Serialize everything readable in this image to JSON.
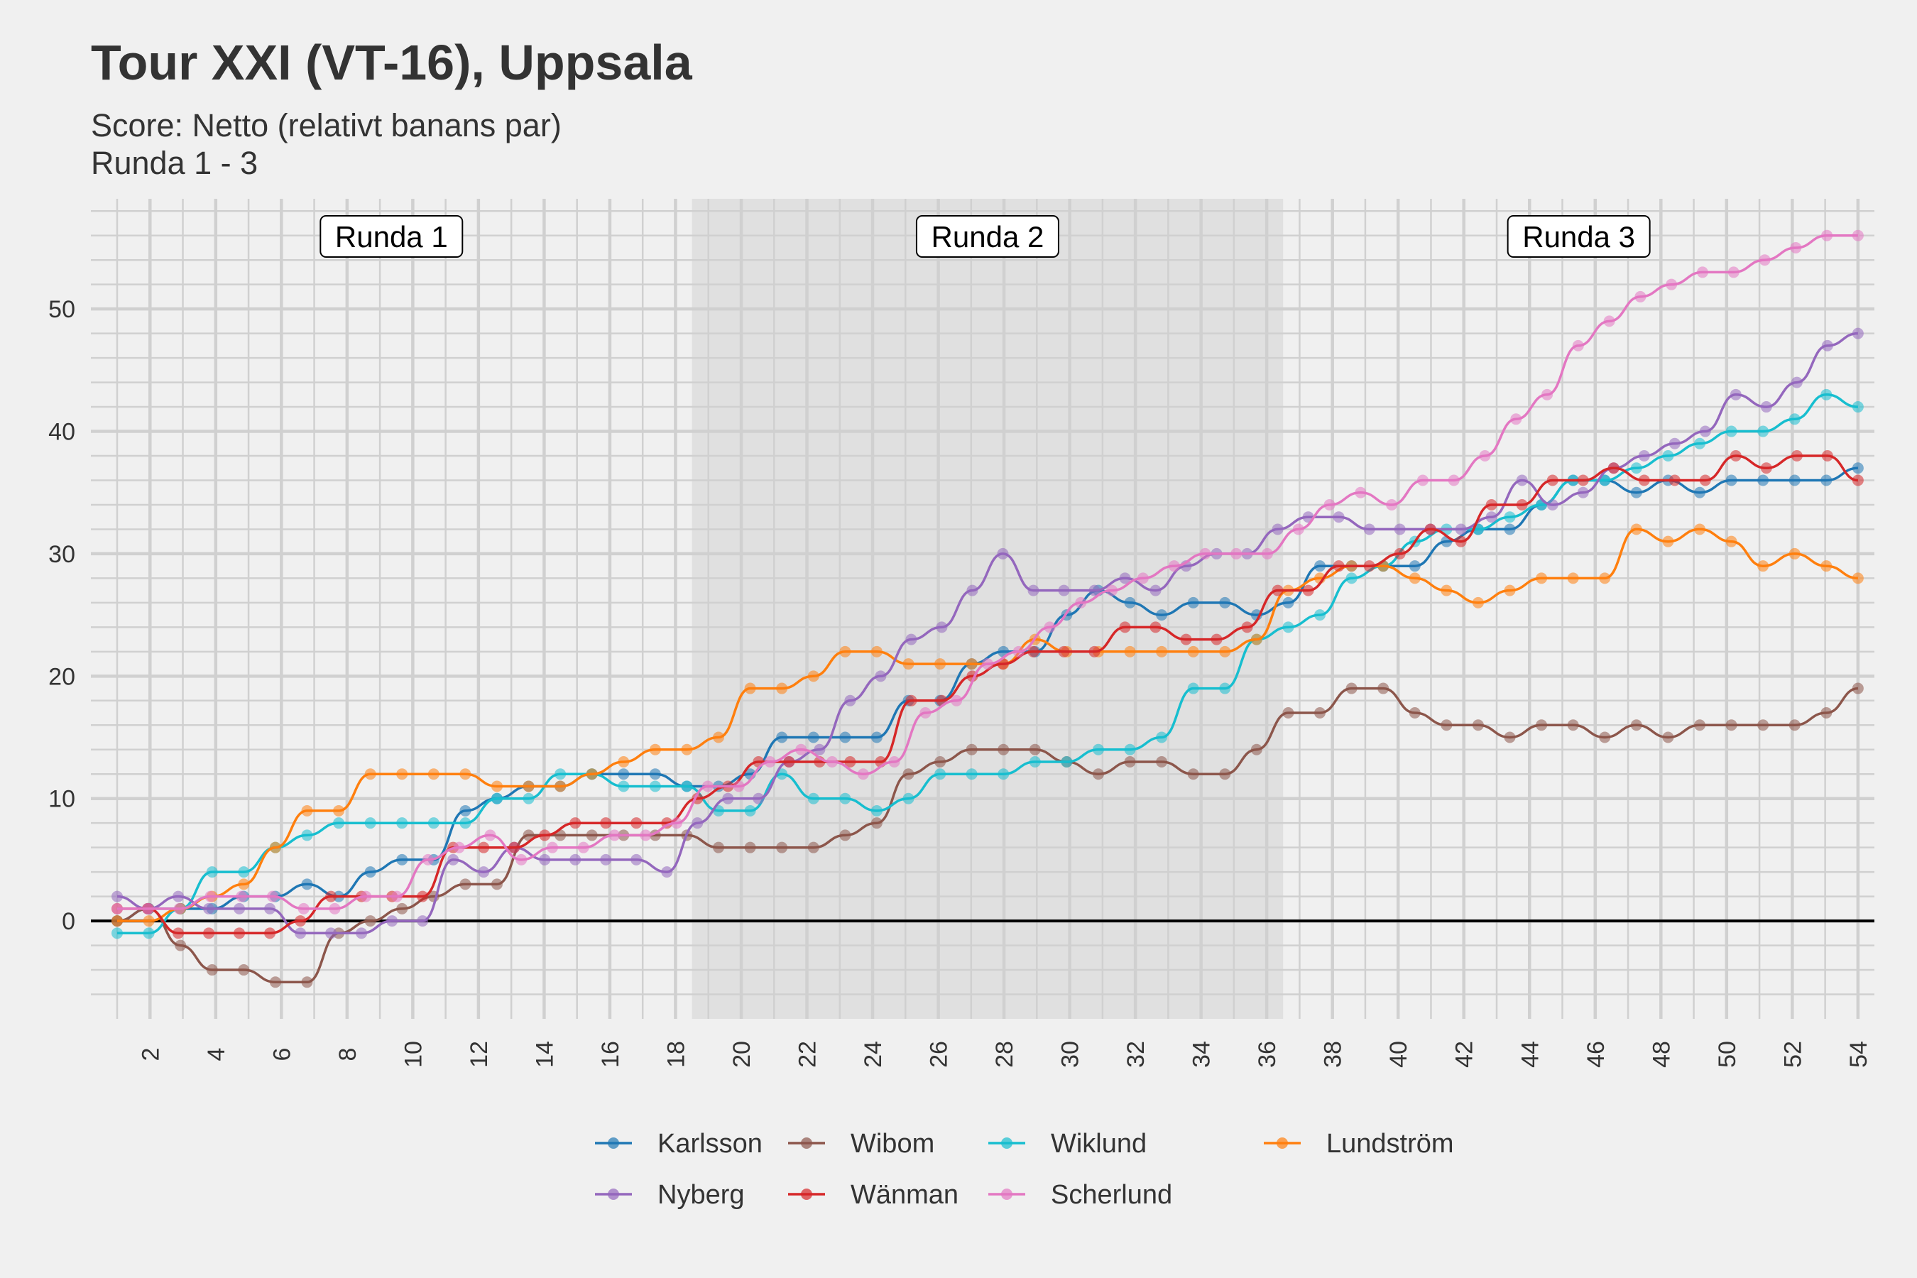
{
  "header": {
    "title": "Tour XXI (VT-16), Uppsala",
    "subtitle_line1": "Score: Netto (relativt banans par)",
    "subtitle_line2": "Runda 1 - 3"
  },
  "chart_data": {
    "type": "line",
    "title": "Tour XXI (VT-16), Uppsala",
    "subtitle": [
      "Score: Netto (relativt banans par)",
      "Runda 1 - 3"
    ],
    "xlabel": "",
    "ylabel": "",
    "xlim": [
      0.2,
      54.5
    ],
    "ylim": [
      -8,
      59
    ],
    "x_ticks": [
      2,
      4,
      6,
      8,
      10,
      12,
      14,
      16,
      18,
      20,
      22,
      24,
      26,
      28,
      30,
      32,
      34,
      36,
      38,
      40,
      42,
      44,
      46,
      48,
      50,
      52,
      54
    ],
    "y_ticks": [
      0,
      10,
      20,
      30,
      40,
      50
    ],
    "grid": true,
    "reference_line_y": 0,
    "legend_position": "bottom",
    "rounds": [
      {
        "label": "Runda 1",
        "x_start": 0.2,
        "x_end": 18.5,
        "shaded": false
      },
      {
        "label": "Runda 2",
        "x_start": 18.5,
        "x_end": 36.5,
        "shaded": true
      },
      {
        "label": "Runda 3",
        "x_start": 36.5,
        "x_end": 54.5,
        "shaded": false
      }
    ],
    "series": [
      {
        "name": "Karlsson",
        "color": "#1f77b4",
        "values": [
          0,
          1,
          1,
          1,
          2,
          2,
          3,
          2,
          4,
          5,
          5,
          9,
          10,
          11,
          11,
          12,
          12,
          12,
          11,
          11,
          12,
          15,
          15,
          15,
          15,
          18,
          18,
          21,
          22,
          22,
          25,
          27,
          26,
          25,
          26,
          26,
          25,
          26,
          29,
          29,
          29,
          29,
          31,
          32,
          32,
          34,
          36,
          36,
          35,
          36,
          35,
          36,
          36,
          36,
          36,
          37
        ]
      },
      {
        "name": "Wibom",
        "color": "#8c564b",
        "values": [
          0,
          1,
          -2,
          -4,
          -4,
          -5,
          -5,
          -1,
          0,
          1,
          2,
          3,
          3,
          7,
          7,
          7,
          7,
          7,
          7,
          6,
          6,
          6,
          6,
          7,
          8,
          12,
          13,
          14,
          14,
          14,
          13,
          12,
          13,
          13,
          12,
          12,
          14,
          17,
          17,
          19,
          19,
          17,
          16,
          16,
          15,
          16,
          16,
          15,
          16,
          15,
          16,
          16,
          16,
          16,
          17,
          19
        ]
      },
      {
        "name": "Wiklund",
        "color": "#17becf",
        "values": [
          -1,
          -1,
          1,
          4,
          4,
          6,
          7,
          8,
          8,
          8,
          8,
          8,
          10,
          10,
          12,
          12,
          11,
          11,
          11,
          9,
          9,
          12,
          10,
          10,
          9,
          10,
          12,
          12,
          12,
          13,
          13,
          14,
          14,
          15,
          19,
          19,
          23,
          24,
          25,
          28,
          29,
          31,
          32,
          32,
          33,
          34,
          36,
          36,
          37,
          38,
          39,
          40,
          40,
          41,
          43,
          42
        ]
      },
      {
        "name": "Lundström",
        "color": "#ff7f0e",
        "values": [
          0,
          0,
          1,
          2,
          3,
          6,
          9,
          9,
          12,
          12,
          12,
          12,
          11,
          11,
          11,
          12,
          13,
          14,
          14,
          15,
          19,
          19,
          20,
          22,
          22,
          21,
          21,
          21,
          21,
          23,
          22,
          22,
          22,
          22,
          22,
          22,
          23,
          27,
          28,
          29,
          29,
          28,
          27,
          26,
          27,
          28,
          28,
          28,
          32,
          31,
          32,
          31,
          29,
          30,
          29,
          28
        ]
      },
      {
        "name": "Nyberg",
        "color": "#9467bd",
        "values": [
          2,
          1,
          2,
          1,
          1,
          1,
          -1,
          -1,
          -1,
          0,
          0,
          5,
          4,
          6,
          5,
          5,
          5,
          5,
          4,
          8,
          10,
          10,
          13,
          14,
          18,
          20,
          23,
          24,
          27,
          30,
          27,
          27,
          27,
          28,
          27,
          29,
          30,
          30,
          32,
          33,
          33,
          32,
          32,
          32,
          32,
          33,
          36,
          34,
          35,
          37,
          38,
          39,
          40,
          43,
          42,
          44,
          47,
          48
        ]
      },
      {
        "name": "Wänman",
        "color": "#d62728",
        "values": [
          1,
          1,
          -1,
          -1,
          -1,
          -1,
          0,
          2,
          2,
          2,
          2,
          6,
          6,
          6,
          7,
          8,
          8,
          8,
          8,
          10,
          11,
          13,
          13,
          13,
          13,
          13,
          18,
          18,
          20,
          21,
          22,
          22,
          22,
          24,
          24,
          23,
          23,
          24,
          27,
          27,
          29,
          29,
          30,
          32,
          31,
          34,
          34,
          36,
          36,
          37,
          36,
          36,
          36,
          38,
          37,
          38,
          38,
          36
        ]
      },
      {
        "name": "Scherlund",
        "color": "#e377c2",
        "values": [
          1,
          1,
          1,
          2,
          2,
          2,
          1,
          1,
          2,
          2,
          5,
          6,
          7,
          5,
          6,
          6,
          7,
          7,
          8,
          11,
          11,
          13,
          14,
          13,
          12,
          13,
          17,
          18,
          21,
          22,
          24,
          26,
          27,
          28,
          29,
          30,
          30,
          30,
          32,
          34,
          35,
          34,
          36,
          36,
          38,
          41,
          43,
          47,
          49,
          51,
          52,
          53,
          53,
          54,
          55,
          56,
          56
        ]
      }
    ]
  }
}
